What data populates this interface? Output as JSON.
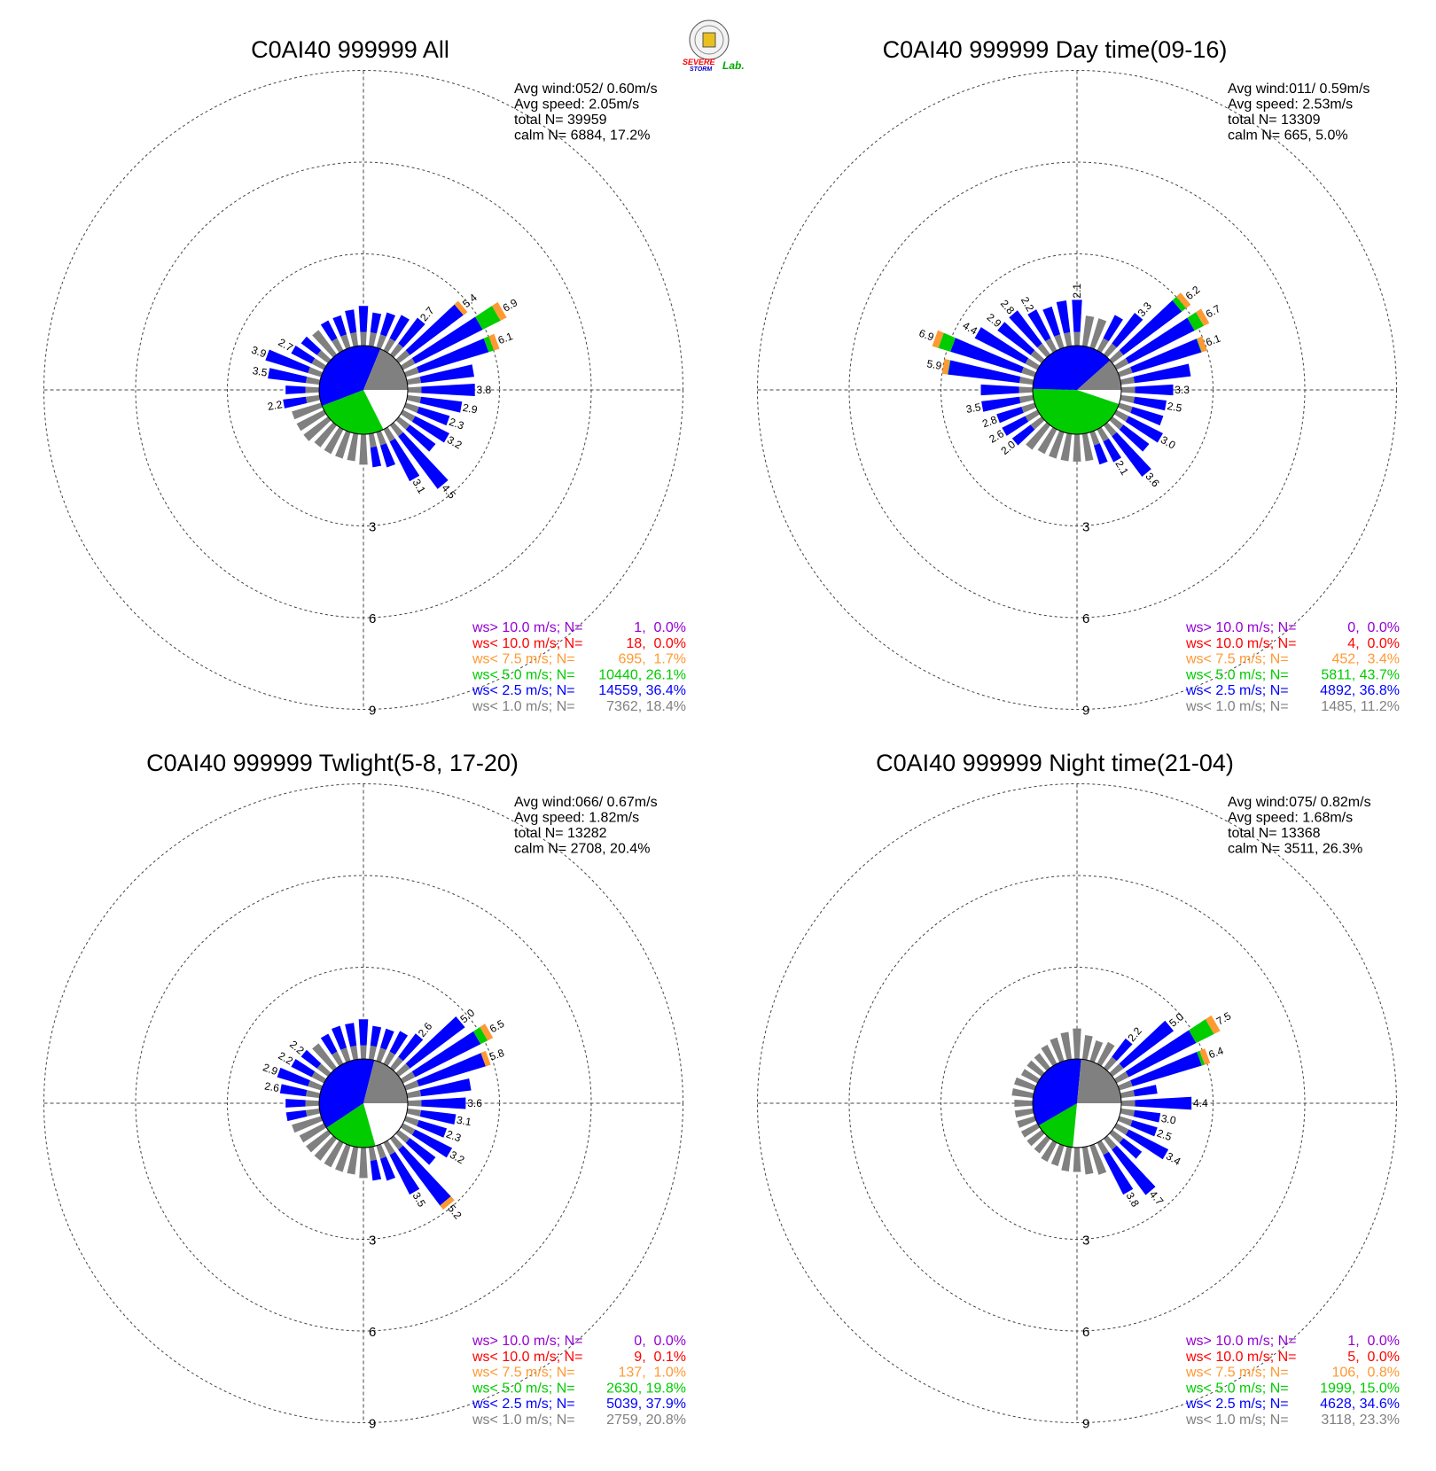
{
  "logo": {
    "lines": [
      "SEVERE",
      "STORM",
      "Lab."
    ]
  },
  "colors": {
    "ws_gt10": "#9400d3",
    "ws_lt10": "#ff0000",
    "ws_lt75": "#ff9933",
    "ws_lt5": "#00cc00",
    "ws_lt25": "#0000ff",
    "ws_lt1": "#808080",
    "calm": "#ffffff"
  },
  "legend_labels": [
    "ws> 10.0 m/s; N=",
    "ws< 10.0 m/s; N=",
    "ws<  7.5 m/s; N=",
    "ws<  5.0 m/s; N=",
    "ws<  2.5 m/s; N=",
    "ws<  1.0 m/s; N="
  ],
  "ring_labels": [
    "3",
    "6",
    "9"
  ],
  "chart_data": [
    {
      "type": "wind_rose",
      "title": "C0AI40 999999 All",
      "info": [
        "Avg wind:052/ 0.60m/s",
        "Avg speed: 2.05m/s",
        "total N=       39959",
        "calm N=   6884,  17.2%"
      ],
      "legend": [
        {
          "label": "ws> 10.0 m/s; N=",
          "value": "    1,  0.0%",
          "color": "#9400d3"
        },
        {
          "label": "ws< 10.0 m/s; N=",
          "value": "   18,  0.0%",
          "color": "#ff0000"
        },
        {
          "label": "ws<  7.5 m/s; N=",
          "value": "  695,  1.7%",
          "color": "#ff9933"
        },
        {
          "label": "ws<  5.0 m/s; N=",
          "value": "10440, 26.1%",
          "color": "#00cc00"
        },
        {
          "label": "ws<  2.5 m/s; N=",
          "value": "14559, 36.4%",
          "color": "#0000ff"
        },
        {
          "label": "ws<  1.0 m/s; N=",
          "value": " 7362, 18.4%",
          "color": "#808080"
        }
      ],
      "pie": [
        17.2,
        26.1,
        36.4,
        18.4
      ],
      "bars": [
        {
          "dir": 0,
          "total": 1.3
        },
        {
          "dir": 10,
          "total": 1.1
        },
        {
          "dir": 20,
          "total": 1.2
        },
        {
          "dir": 30,
          "total": 1.3
        },
        {
          "dir": 40,
          "total": 1.5,
          "label": "2.7"
        },
        {
          "dir": 50,
          "total": 2.8,
          "label": "5.4"
        },
        {
          "dir": 60,
          "total": 3.8,
          "label": "6.9"
        },
        {
          "dir": 70,
          "total": 3.2,
          "label": "6.1"
        },
        {
          "dir": 80,
          "total": 2.2
        },
        {
          "dir": 90,
          "total": 2.2,
          "label": "3.8"
        },
        {
          "dir": 100,
          "total": 1.8,
          "label": "2.9"
        },
        {
          "dir": 110,
          "total": 1.5,
          "label": "2.3"
        },
        {
          "dir": 120,
          "total": 1.7,
          "label": "3.2"
        },
        {
          "dir": 130,
          "total": 1.5
        },
        {
          "dir": 140,
          "total": 2.6,
          "label": "4.5"
        },
        {
          "dir": 150,
          "total": 1.9,
          "label": "3.1"
        },
        {
          "dir": 160,
          "total": 1.2
        },
        {
          "dir": 170,
          "total": 1.1
        },
        {
          "dir": 180,
          "total": 1.0
        },
        {
          "dir": 190,
          "total": 0.9
        },
        {
          "dir": 200,
          "total": 0.9
        },
        {
          "dir": 210,
          "total": 0.9
        },
        {
          "dir": 220,
          "total": 0.9
        },
        {
          "dir": 230,
          "total": 1.0
        },
        {
          "dir": 240,
          "total": 1.0
        },
        {
          "dir": 250,
          "total": 1.0
        },
        {
          "dir": 260,
          "total": 1.2,
          "label": "2.2"
        },
        {
          "dir": 270,
          "total": 1.1
        },
        {
          "dir": 280,
          "total": 1.7,
          "label": "3.5"
        },
        {
          "dir": 290,
          "total": 1.9,
          "label": "3.9"
        },
        {
          "dir": 300,
          "total": 1.2,
          "label": "2.7"
        },
        {
          "dir": 310,
          "total": 1.1
        },
        {
          "dir": 320,
          "total": 1.0
        },
        {
          "dir": 330,
          "total": 1.1
        },
        {
          "dir": 340,
          "total": 1.1
        },
        {
          "dir": 350,
          "total": 1.2
        }
      ]
    },
    {
      "type": "wind_rose",
      "title": "C0AI40 999999 Day time(09-16)",
      "info": [
        "Avg wind:011/ 0.59m/s",
        "Avg speed: 2.53m/s",
        "total N=       13309",
        "calm N=    665,   5.0%"
      ],
      "legend": [
        {
          "label": "ws> 10.0 m/s; N=",
          "value": "    0,  0.0%",
          "color": "#9400d3"
        },
        {
          "label": "ws< 10.0 m/s; N=",
          "value": "    4,  0.0%",
          "color": "#ff0000"
        },
        {
          "label": "ws<  7.5 m/s; N=",
          "value": "  452,  3.4%",
          "color": "#ff9933"
        },
        {
          "label": "ws<  5.0 m/s; N=",
          "value": " 5811, 43.7%",
          "color": "#00cc00"
        },
        {
          "label": "ws<  2.5 m/s; N=",
          "value": " 4892, 36.8%",
          "color": "#0000ff"
        },
        {
          "label": "ws<  1.0 m/s; N=",
          "value": " 1485, 11.2%",
          "color": "#808080"
        }
      ],
      "pie": [
        5.0,
        43.7,
        36.8,
        11.2
      ],
      "bars": [
        {
          "dir": 0,
          "total": 1.5,
          "label": "2.1"
        },
        {
          "dir": 10,
          "total": 1.0
        },
        {
          "dir": 20,
          "total": 1.0
        },
        {
          "dir": 30,
          "total": 1.3
        },
        {
          "dir": 40,
          "total": 1.7,
          "label": "3.3"
        },
        {
          "dir": 50,
          "total": 3.2,
          "label": "6.2"
        },
        {
          "dir": 60,
          "total": 3.4,
          "label": "6.7"
        },
        {
          "dir": 70,
          "total": 3.0,
          "label": "6.1"
        },
        {
          "dir": 80,
          "total": 2.3
        },
        {
          "dir": 90,
          "total": 1.7,
          "label": "3.3"
        },
        {
          "dir": 100,
          "total": 1.5,
          "label": "2.5"
        },
        {
          "dir": 110,
          "total": 1.5
        },
        {
          "dir": 120,
          "total": 1.7,
          "label": "3.0"
        },
        {
          "dir": 130,
          "total": 1.5
        },
        {
          "dir": 140,
          "total": 2.1,
          "label": "3.6"
        },
        {
          "dir": 150,
          "total": 1.2,
          "label": "2.1"
        },
        {
          "dir": 160,
          "total": 1.1
        },
        {
          "dir": 170,
          "total": 0.9
        },
        {
          "dir": 180,
          "total": 0.9
        },
        {
          "dir": 190,
          "total": 0.9
        },
        {
          "dir": 200,
          "total": 0.9
        },
        {
          "dir": 210,
          "total": 0.9
        },
        {
          "dir": 220,
          "total": 1.0
        },
        {
          "dir": 230,
          "total": 1.2,
          "label": "2.0"
        },
        {
          "dir": 240,
          "total": 1.3,
          "label": "2.6"
        },
        {
          "dir": 250,
          "total": 1.3,
          "label": "2.8"
        },
        {
          "dir": 260,
          "total": 1.7,
          "label": "3.5"
        },
        {
          "dir": 270,
          "total": 1.7
        },
        {
          "dir": 280,
          "total": 3.0,
          "label": "5.9"
        },
        {
          "dir": 290,
          "total": 3.5,
          "label": "6.9"
        },
        {
          "dir": 300,
          "total": 2.3,
          "label": "4.4"
        },
        {
          "dir": 310,
          "total": 1.8,
          "label": "2.9"
        },
        {
          "dir": 320,
          "total": 1.8,
          "label": "2.8"
        },
        {
          "dir": 330,
          "total": 1.5,
          "label": "2.2"
        },
        {
          "dir": 340,
          "total": 1.4
        },
        {
          "dir": 350,
          "total": 1.5
        }
      ]
    },
    {
      "type": "wind_rose",
      "title": "C0AI40 999999 Twlight(5-8, 17-20)",
      "info": [
        "Avg wind:066/ 0.67m/s",
        "Avg speed: 1.82m/s",
        "total N=       13282",
        "calm N=   2708,  20.4%"
      ],
      "legend": [
        {
          "label": "ws> 10.0 m/s; N=",
          "value": "    0,  0.0%",
          "color": "#9400d3"
        },
        {
          "label": "ws< 10.0 m/s; N=",
          "value": "    9,  0.1%",
          "color": "#ff0000"
        },
        {
          "label": "ws<  7.5 m/s; N=",
          "value": "  137,  1.0%",
          "color": "#ff9933"
        },
        {
          "label": "ws<  5.0 m/s; N=",
          "value": " 2630, 19.8%",
          "color": "#00cc00"
        },
        {
          "label": "ws<  2.5 m/s; N=",
          "value": " 5039, 37.9%",
          "color": "#0000ff"
        },
        {
          "label": "ws<  1.0 m/s; N=",
          "value": " 2759, 20.8%",
          "color": "#808080"
        }
      ],
      "pie": [
        20.4,
        19.8,
        37.9,
        20.8
      ],
      "bars": [
        {
          "dir": 0,
          "total": 1.3
        },
        {
          "dir": 10,
          "total": 1.1
        },
        {
          "dir": 20,
          "total": 1.1
        },
        {
          "dir": 30,
          "total": 1.2
        },
        {
          "dir": 40,
          "total": 1.4,
          "label": "2.6"
        },
        {
          "dir": 50,
          "total": 2.7,
          "label": "5.0"
        },
        {
          "dir": 60,
          "total": 3.3,
          "label": "6.5"
        },
        {
          "dir": 70,
          "total": 2.9,
          "label": "5.8"
        },
        {
          "dir": 80,
          "total": 2.1
        },
        {
          "dir": 90,
          "total": 1.9,
          "label": "3.6"
        },
        {
          "dir": 100,
          "total": 1.6,
          "label": "3.1"
        },
        {
          "dir": 110,
          "total": 1.4,
          "label": "2.3"
        },
        {
          "dir": 120,
          "total": 1.8,
          "label": "3.2"
        },
        {
          "dir": 130,
          "total": 1.5
        },
        {
          "dir": 140,
          "total": 2.9,
          "label": "5.2"
        },
        {
          "dir": 150,
          "total": 1.9,
          "label": "3.5"
        },
        {
          "dir": 160,
          "total": 1.2
        },
        {
          "dir": 170,
          "total": 1.1
        },
        {
          "dir": 180,
          "total": 1.0
        },
        {
          "dir": 190,
          "total": 0.9
        },
        {
          "dir": 200,
          "total": 0.9
        },
        {
          "dir": 210,
          "total": 0.9
        },
        {
          "dir": 220,
          "total": 0.9
        },
        {
          "dir": 230,
          "total": 0.9
        },
        {
          "dir": 240,
          "total": 0.9
        },
        {
          "dir": 250,
          "total": 1.0
        },
        {
          "dir": 260,
          "total": 1.1
        },
        {
          "dir": 270,
          "total": 1.1
        },
        {
          "dir": 280,
          "total": 1.3,
          "label": "2.6"
        },
        {
          "dir": 290,
          "total": 1.5,
          "label": "2.9"
        },
        {
          "dir": 300,
          "total": 1.2,
          "label": "2.2"
        },
        {
          "dir": 310,
          "total": 1.1,
          "label": "2.2"
        },
        {
          "dir": 320,
          "total": 1.0
        },
        {
          "dir": 330,
          "total": 1.1
        },
        {
          "dir": 340,
          "total": 1.2
        },
        {
          "dir": 350,
          "total": 1.2
        }
      ]
    },
    {
      "type": "wind_rose",
      "title": "C0AI40 999999 Night time(21-04)",
      "info": [
        "Avg wind:075/ 0.82m/s",
        "Avg speed: 1.68m/s",
        "total N=       13368",
        "calm N=   3511,  26.3%"
      ],
      "legend": [
        {
          "label": "ws> 10.0 m/s; N=",
          "value": "    1,  0.0%",
          "color": "#9400d3"
        },
        {
          "label": "ws< 10.0 m/s; N=",
          "value": "    5,  0.0%",
          "color": "#ff0000"
        },
        {
          "label": "ws<  7.5 m/s; N=",
          "value": "  106,  0.8%",
          "color": "#ff9933"
        },
        {
          "label": "ws<  5.0 m/s; N=",
          "value": " 1999, 15.0%",
          "color": "#00cc00"
        },
        {
          "label": "ws<  2.5 m/s; N=",
          "value": " 4628, 34.6%",
          "color": "#0000ff"
        },
        {
          "label": "ws<  1.0 m/s; N=",
          "value": " 3118, 23.3%",
          "color": "#808080"
        }
      ],
      "pie": [
        26.3,
        15.0,
        34.6,
        23.3
      ],
      "bars": [
        {
          "dir": 0,
          "total": 1.0
        },
        {
          "dir": 10,
          "total": 0.8
        },
        {
          "dir": 20,
          "total": 0.7
        },
        {
          "dir": 30,
          "total": 0.8
        },
        {
          "dir": 40,
          "total": 1.2,
          "label": "2.2"
        },
        {
          "dir": 50,
          "total": 2.5,
          "label": "5.0"
        },
        {
          "dir": 60,
          "total": 3.8,
          "label": "7.5"
        },
        {
          "dir": 70,
          "total": 3.1,
          "label": "6.4"
        },
        {
          "dir": 80,
          "total": 1.2
        },
        {
          "dir": 90,
          "total": 2.3,
          "label": "4.4"
        },
        {
          "dir": 100,
          "total": 1.3,
          "label": "3.0"
        },
        {
          "dir": 110,
          "total": 1.3,
          "label": "2.5"
        },
        {
          "dir": 120,
          "total": 1.9,
          "label": "3.4"
        },
        {
          "dir": 130,
          "total": 1.2
        },
        {
          "dir": 140,
          "total": 2.3,
          "label": "4.7"
        },
        {
          "dir": 150,
          "total": 1.9,
          "label": "3.8"
        },
        {
          "dir": 160,
          "total": 1.0
        },
        {
          "dir": 170,
          "total": 0.9
        },
        {
          "dir": 180,
          "total": 0.8
        },
        {
          "dir": 190,
          "total": 0.8
        },
        {
          "dir": 200,
          "total": 0.7
        },
        {
          "dir": 210,
          "total": 0.7
        },
        {
          "dir": 220,
          "total": 0.6
        },
        {
          "dir": 230,
          "total": 0.6
        },
        {
          "dir": 240,
          "total": 0.6
        },
        {
          "dir": 250,
          "total": 0.6
        },
        {
          "dir": 260,
          "total": 0.6
        },
        {
          "dir": 270,
          "total": 0.6
        },
        {
          "dir": 280,
          "total": 0.7
        },
        {
          "dir": 290,
          "total": 0.7
        },
        {
          "dir": 300,
          "total": 0.6
        },
        {
          "dir": 310,
          "total": 0.6
        },
        {
          "dir": 320,
          "total": 0.6
        },
        {
          "dir": 330,
          "total": 0.7
        },
        {
          "dir": 340,
          "total": 0.8
        },
        {
          "dir": 350,
          "total": 0.9
        }
      ]
    }
  ]
}
